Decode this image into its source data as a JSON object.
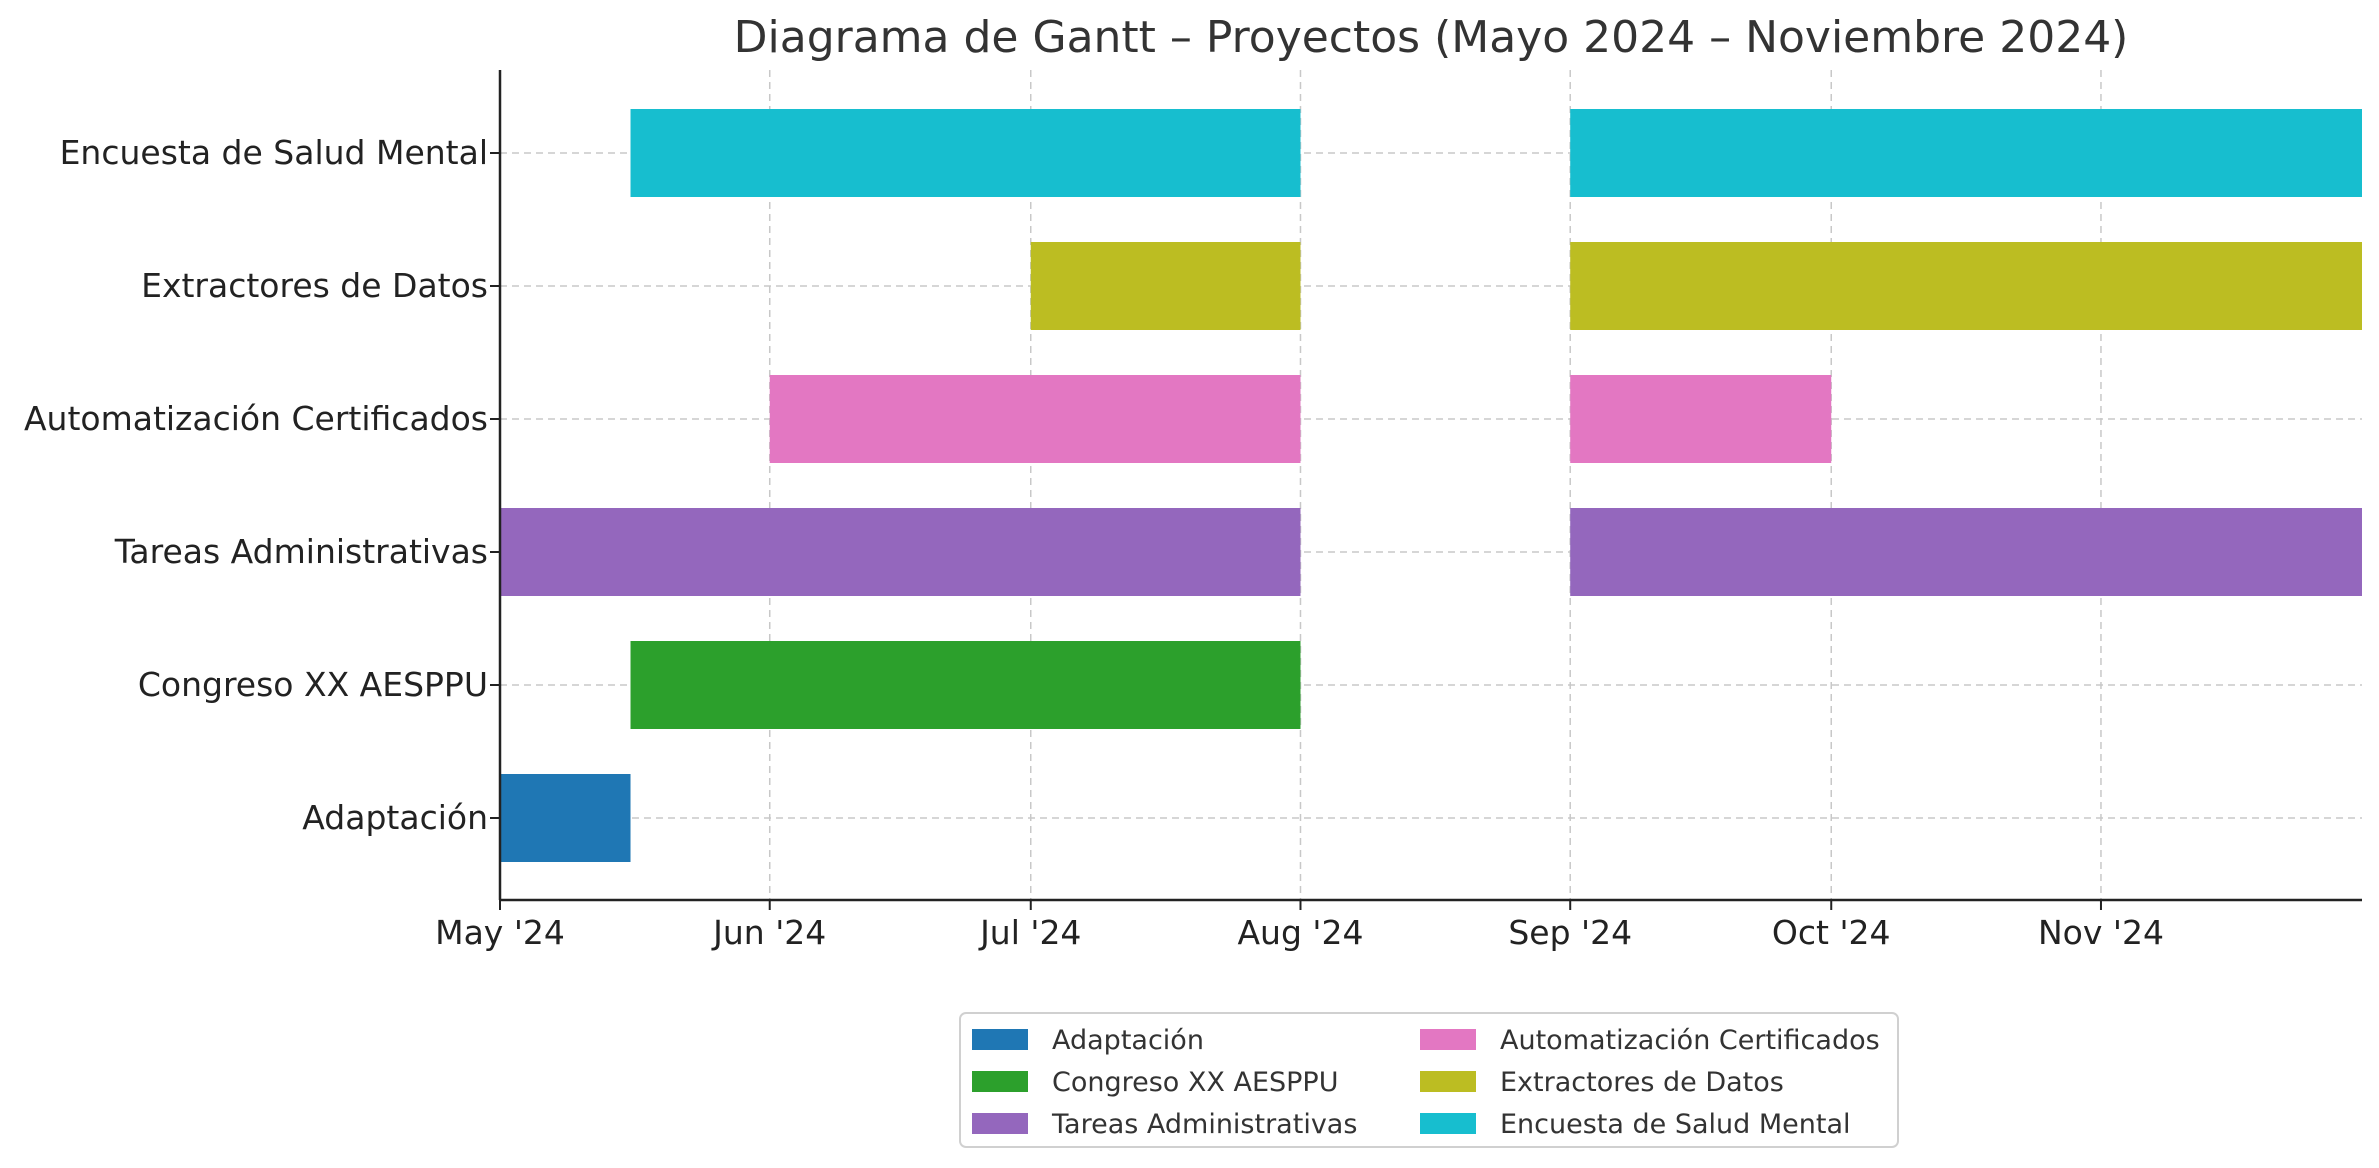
{
  "chart_data": {
    "type": "gantt",
    "title": "Diagrama de Gantt – Proyectos (Mayo 2024 – Noviembre 2024)",
    "x_axis": {
      "type": "date",
      "range": [
        "2024-05-01",
        "2024-12-01"
      ],
      "ticks": [
        {
          "date": "2024-05-01",
          "label": "May '24"
        },
        {
          "date": "2024-06-01",
          "label": "Jun '24"
        },
        {
          "date": "2024-07-01",
          "label": "Jul '24"
        },
        {
          "date": "2024-08-01",
          "label": "Aug '24"
        },
        {
          "date": "2024-09-01",
          "label": "Sep '24"
        },
        {
          "date": "2024-10-01",
          "label": "Oct '24"
        },
        {
          "date": "2024-11-01",
          "label": "Nov '24"
        }
      ]
    },
    "grid": true,
    "legend_position": "bottom-center",
    "tasks": [
      {
        "name": "Adaptación",
        "color": "#1f77b4",
        "segments": [
          {
            "start": "2024-05-01",
            "end": "2024-05-16"
          }
        ]
      },
      {
        "name": "Congreso XX AESPPU",
        "color": "#2ca02c",
        "segments": [
          {
            "start": "2024-05-16",
            "end": "2024-08-01"
          }
        ]
      },
      {
        "name": "Tareas Administrativas",
        "color": "#9467bd",
        "segments": [
          {
            "start": "2024-05-01",
            "end": "2024-08-01"
          },
          {
            "start": "2024-09-01",
            "end": "2024-12-01"
          }
        ]
      },
      {
        "name": "Automatización Certificados",
        "color": "#e377c2",
        "segments": [
          {
            "start": "2024-06-01",
            "end": "2024-08-01"
          },
          {
            "start": "2024-09-01",
            "end": "2024-10-01"
          }
        ]
      },
      {
        "name": "Extractores de Datos",
        "color": "#bcbd22",
        "segments": [
          {
            "start": "2024-07-01",
            "end": "2024-08-01"
          },
          {
            "start": "2024-09-01",
            "end": "2024-12-01"
          }
        ]
      },
      {
        "name": "Encuesta de Salud Mental",
        "color": "#17becf",
        "segments": [
          {
            "start": "2024-05-16",
            "end": "2024-08-01"
          },
          {
            "start": "2024-09-01",
            "end": "2024-12-01"
          }
        ]
      }
    ]
  }
}
